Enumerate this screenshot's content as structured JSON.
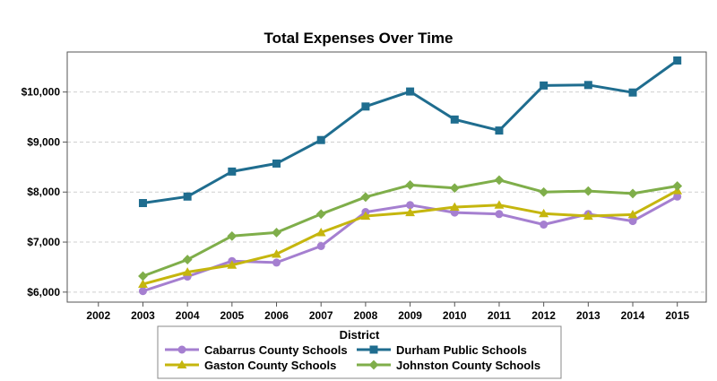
{
  "chart_data": {
    "type": "line",
    "title": "Total Expenses Over Time",
    "xlabel": "",
    "ylabel": "",
    "x": [
      2002,
      2003,
      2004,
      2005,
      2006,
      2007,
      2008,
      2009,
      2010,
      2011,
      2012,
      2013,
      2014,
      2015
    ],
    "x_tick_labels": [
      "2002",
      "2003",
      "2004",
      "2005",
      "2006",
      "2007",
      "2008",
      "2009",
      "2010",
      "2011",
      "2012",
      "2013",
      "2014",
      "2015"
    ],
    "xlim": [
      2001.3,
      2015.65
    ],
    "ylim": [
      5800,
      10800
    ],
    "y_ticks": [
      6000,
      7000,
      8000,
      9000,
      10000
    ],
    "y_tick_labels": [
      "$6,000",
      "$7,000",
      "$8,000",
      "$9,000",
      "$10,000"
    ],
    "grid": "horizontal dashed",
    "legend": {
      "title": "District",
      "placement": "bottom-center",
      "columns": 2
    },
    "series": [
      {
        "name": "Cabarrus County Schools",
        "color": "#a57fd0",
        "marker": "circle",
        "x": [
          2003,
          2004,
          2005,
          2006,
          2007,
          2008,
          2009,
          2010,
          2011,
          2012,
          2013,
          2014,
          2015
        ],
        "values": [
          6020,
          6310,
          6620,
          6590,
          6920,
          7600,
          7740,
          7590,
          7560,
          7350,
          7560,
          7420,
          7910
        ]
      },
      {
        "name": "Durham Public Schools",
        "color": "#1f6d8f",
        "marker": "square",
        "x": [
          2003,
          2004,
          2005,
          2006,
          2007,
          2008,
          2009,
          2010,
          2011,
          2012,
          2013,
          2014,
          2015
        ],
        "values": [
          7780,
          7910,
          8410,
          8570,
          9040,
          9710,
          10010,
          9450,
          9230,
          10130,
          10140,
          9990,
          10630
        ]
      },
      {
        "name": "Gaston County Schools",
        "color": "#c5b60e",
        "marker": "triangle",
        "x": [
          2003,
          2004,
          2005,
          2006,
          2007,
          2008,
          2009,
          2010,
          2011,
          2012,
          2013,
          2014,
          2015
        ],
        "values": [
          6160,
          6400,
          6540,
          6760,
          7190,
          7520,
          7590,
          7700,
          7740,
          7570,
          7520,
          7550,
          8030
        ]
      },
      {
        "name": "Johnston County Schools",
        "color": "#7fae4a",
        "marker": "diamond",
        "x": [
          2003,
          2004,
          2005,
          2006,
          2007,
          2008,
          2009,
          2010,
          2011,
          2012,
          2013,
          2014,
          2015
        ],
        "values": [
          6320,
          6650,
          7120,
          7190,
          7560,
          7900,
          8140,
          8080,
          8240,
          8000,
          8020,
          7970,
          8120
        ]
      }
    ]
  }
}
